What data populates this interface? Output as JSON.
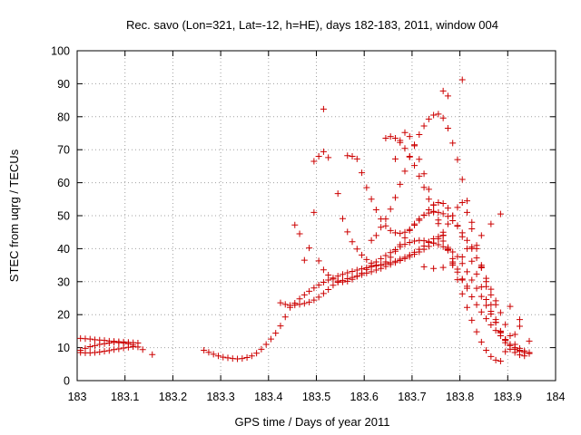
{
  "chart_data": {
    "type": "scatter",
    "title": "Rec. savo (Lon=321, Lat=-12, h=HE), days 182-183, 2011, window 004",
    "xlabel": "GPS time / Days of year 2011",
    "ylabel": "STEC from uqrg / TECUs",
    "xlim": [
      183,
      184
    ],
    "ylim": [
      0,
      100
    ],
    "xticks": [
      183,
      183.1,
      183.2,
      183.3,
      183.4,
      183.5,
      183.6,
      183.7,
      183.8,
      183.9,
      184
    ],
    "xtick_labels": [
      "183",
      "183.1",
      "183.2",
      "183.3",
      "183.4",
      "183.5",
      "183.6",
      "183.7",
      "183.8",
      "183.9",
      "184"
    ],
    "yticks": [
      0,
      10,
      20,
      30,
      40,
      50,
      60,
      70,
      80,
      90,
      100
    ],
    "ytick_labels": [
      "0",
      "10",
      "20",
      "30",
      "40",
      "50",
      "60",
      "70",
      "80",
      "90",
      "100"
    ],
    "grid": true,
    "marker": "plus",
    "color": "#cc0000",
    "series": [
      {
        "x": [
          183.007,
          183.017,
          183.027,
          183.037,
          183.047,
          183.057,
          183.067,
          183.077,
          183.087,
          183.097,
          183.107,
          183.117,
          183.127,
          183.137,
          183.157
        ],
        "y": [
          9.2,
          9.8,
          10.3,
          10.6,
          11.0,
          11.2,
          11.4,
          11.6,
          11.5,
          11.4,
          11.2,
          10.8,
          10.2,
          9.4,
          7.9
        ]
      },
      {
        "x": [
          183.007,
          183.017,
          183.027,
          183.037,
          183.047,
          183.057,
          183.067,
          183.077,
          183.087,
          183.097,
          183.107,
          183.117
        ],
        "y": [
          8.5,
          8.4,
          8.4,
          8.5,
          8.7,
          8.9,
          9.1,
          9.4,
          9.6,
          9.9,
          10.1,
          10.3
        ]
      },
      {
        "x": [
          183.007,
          183.017,
          183.027,
          183.037,
          183.047,
          183.057,
          183.067,
          183.077,
          183.087,
          183.097,
          183.107,
          183.117,
          183.127
        ],
        "y": [
          12.8,
          12.7,
          12.6,
          12.4,
          12.3,
          12.2,
          12.0,
          11.9,
          11.8,
          11.7,
          11.6,
          11.5,
          11.4
        ]
      },
      {
        "x": [
          183.265,
          183.275,
          183.285,
          183.295,
          183.305,
          183.315,
          183.325,
          183.335,
          183.345,
          183.355,
          183.365,
          183.375,
          183.385,
          183.395,
          183.405,
          183.415,
          183.425,
          183.435,
          183.445,
          183.455,
          183.465,
          183.475,
          183.485,
          183.495,
          183.505,
          183.515,
          183.525,
          183.535,
          183.545,
          183.555,
          183.565,
          183.575,
          183.585,
          183.595,
          183.605,
          183.615,
          183.625,
          183.635,
          183.645,
          183.655,
          183.665,
          183.675,
          183.685,
          183.695,
          183.705,
          183.715,
          183.725,
          183.735,
          183.745,
          183.755,
          183.765,
          183.775,
          183.785,
          183.795,
          183.805,
          183.815
        ],
        "y": [
          9.2,
          8.6,
          8.0,
          7.5,
          7.1,
          6.9,
          6.7,
          6.6,
          6.7,
          7.0,
          7.5,
          8.3,
          9.5,
          11.0,
          12.6,
          14.4,
          16.6,
          19.3,
          22.2,
          23.5,
          24.8,
          26.0,
          27.1,
          28.1,
          29.0,
          29.8,
          30.5,
          31.1,
          31.7,
          32.2,
          32.7,
          33.1,
          33.5,
          33.9,
          34.2,
          34.5,
          34.8,
          35.1,
          35.4,
          35.7,
          36.2,
          36.8,
          37.4,
          38.1,
          38.9,
          39.8,
          40.8,
          41.9,
          43.0,
          43.6,
          42.3,
          39.7,
          36.0,
          32.9,
          30.5,
          28.6
        ]
      },
      {
        "x": [
          183.425,
          183.435,
          183.445,
          183.455,
          183.465,
          183.475,
          183.485,
          183.495,
          183.505,
          183.515,
          183.525,
          183.535,
          183.545,
          183.555,
          183.565,
          183.575,
          183.585,
          183.595,
          183.605,
          183.615,
          183.625,
          183.635,
          183.645,
          183.655,
          183.665,
          183.675,
          183.685,
          183.695,
          183.705,
          183.715,
          183.725,
          183.735,
          183.745,
          183.755,
          183.765,
          183.775,
          183.785,
          183.795,
          183.805,
          183.815,
          183.825,
          183.835,
          183.845,
          183.855,
          183.865,
          183.875
        ],
        "y": [
          23.6,
          23.1,
          22.8,
          22.9,
          23.1,
          23.4,
          23.8,
          24.4,
          25.3,
          26.4,
          27.6,
          28.9,
          29.8,
          30.4,
          30.9,
          31.3,
          31.7,
          32.1,
          32.6,
          33.0,
          33.5,
          34.0,
          34.6,
          35.2,
          35.8,
          36.4,
          37.0,
          37.6,
          38.3,
          39.0,
          39.8,
          40.7,
          41.7,
          43.0,
          45.0,
          47.5,
          50.0,
          52.5,
          54.0,
          51.0,
          46.0,
          40.0,
          35.0,
          30.0,
          26.0,
          23.0
        ]
      },
      {
        "x": [
          183.455,
          183.465,
          183.475,
          183.485,
          183.495,
          183.505,
          183.515,
          183.525,
          183.535,
          183.545,
          183.555,
          183.565,
          183.575,
          183.585,
          183.595,
          183.605,
          183.615,
          183.625,
          183.635,
          183.645,
          183.655,
          183.665,
          183.675,
          183.685,
          183.695,
          183.705,
          183.715,
          183.725,
          183.735,
          183.745,
          183.755,
          183.765,
          183.775,
          183.785,
          183.795,
          183.805,
          183.815,
          183.825,
          183.835,
          183.845,
          183.855,
          183.865,
          183.875,
          183.885,
          183.895
        ],
        "y": [
          47.2,
          44.5,
          36.5,
          40.2,
          51.0,
          36.3,
          33.6,
          32.0,
          30.8,
          30.2,
          29.9,
          30.1,
          30.7,
          31.6,
          32.6,
          33.7,
          34.9,
          36.0,
          37.0,
          37.9,
          38.8,
          39.7,
          40.6,
          41.3,
          41.9,
          42.3,
          42.5,
          42.4,
          42.1,
          41.7,
          41.2,
          40.6,
          39.9,
          39.0,
          37.6,
          35.5,
          33.0,
          30.5,
          28.0,
          25.5,
          22.8,
          20.2,
          17.6,
          15.0,
          12.5
        ]
      },
      {
        "x": [
          183.495,
          183.505,
          183.515,
          183.525
        ],
        "y": [
          66.5,
          68.0,
          69.4,
          67.6
        ]
      },
      {
        "x": [
          183.515
        ],
        "y": [
          82.3
        ]
      },
      {
        "x": [
          183.545,
          183.555,
          183.565,
          183.575,
          183.585,
          183.595,
          183.605,
          183.615,
          183.625,
          183.635,
          183.645,
          183.655,
          183.665,
          183.675,
          183.685,
          183.695,
          183.705,
          183.715,
          183.725,
          183.735,
          183.745,
          183.755,
          183.765,
          183.775,
          183.785,
          183.795,
          183.805,
          183.815,
          183.825,
          183.835,
          183.845,
          183.855,
          183.865,
          183.875,
          183.885,
          183.895,
          183.905,
          183.915,
          183.925,
          183.935,
          183.945
        ],
        "y": [
          56.7,
          49.1,
          45.1,
          42.1,
          39.9,
          38.1,
          36.7,
          35.6,
          35.0,
          35.1,
          36.0,
          37.4,
          39.2,
          41.2,
          43.3,
          45.5,
          47.5,
          49.0,
          50.1,
          50.8,
          51.1,
          51.0,
          50.6,
          49.8,
          48.5,
          46.8,
          44.8,
          42.5,
          40.0,
          37.2,
          34.2,
          31.0,
          27.7,
          24.2,
          20.6,
          17.0,
          13.6,
          11.0,
          9.8,
          9.0,
          8.5
        ]
      },
      {
        "x": [
          183.565,
          183.575,
          183.585,
          183.595,
          183.605,
          183.615,
          183.625,
          183.635,
          183.645,
          183.655,
          183.665,
          183.675,
          183.685,
          183.695,
          183.705,
          183.715,
          183.725,
          183.735,
          183.745,
          183.755,
          183.765,
          183.775,
          183.785,
          183.795,
          183.805,
          183.815,
          183.825,
          183.835,
          183.845,
          183.855,
          183.865,
          183.875,
          183.885,
          183.895,
          183.905,
          183.915,
          183.925,
          183.935,
          183.945
        ],
        "y": [
          68.2,
          68.0,
          67.2,
          63.0,
          58.5,
          55.0,
          51.8,
          49.0,
          46.9,
          45.5,
          44.8,
          44.6,
          45.0,
          45.8,
          47.1,
          48.6,
          50.2,
          51.8,
          53.2,
          54.0,
          53.7,
          52.3,
          50.0,
          47.0,
          43.6,
          40.0,
          36.2,
          32.3,
          28.4,
          24.6,
          21.0,
          17.7,
          14.8,
          12.4,
          10.6,
          9.5,
          8.9,
          8.5,
          8.2
        ]
      },
      {
        "x": [
          183.615,
          183.625,
          183.635,
          183.645,
          183.655,
          183.665,
          183.675,
          183.685,
          183.695,
          183.705,
          183.715,
          183.725,
          183.735,
          183.745,
          183.755,
          183.765,
          183.775,
          183.785,
          183.795,
          183.805,
          183.815,
          183.825,
          183.835,
          183.845,
          183.855,
          183.865,
          183.875,
          183.885,
          183.895,
          183.905,
          183.915,
          183.925,
          183.935
        ],
        "y": [
          42.5,
          44.0,
          46.5,
          49.0,
          52.0,
          55.5,
          59.5,
          63.5,
          67.8,
          71.5,
          74.6,
          77.2,
          79.3,
          80.5,
          80.8,
          79.6,
          76.5,
          72.0,
          67.0,
          61.0,
          54.5,
          48.0,
          41.0,
          34.5,
          28.5,
          23.0,
          18.5,
          14.5,
          11.5,
          9.5,
          8.5,
          7.8,
          7.5
        ]
      },
      {
        "x": [
          183.645,
          183.655,
          183.665,
          183.675,
          183.685,
          183.695,
          183.705,
          183.715,
          183.725,
          183.735,
          183.745,
          183.755,
          183.765,
          183.775,
          183.785,
          183.795,
          183.805,
          183.815,
          183.825,
          183.835,
          183.845,
          183.855,
          183.865,
          183.875,
          183.885,
          183.895,
          183.905,
          183.915,
          183.925,
          183.935
        ],
        "y": [
          73.5,
          74.0,
          73.5,
          72.2,
          70.4,
          68.0,
          65.2,
          62.0,
          58.6,
          55.0,
          51.3,
          47.6,
          44.0,
          40.4,
          37.0,
          33.8,
          30.8,
          28.0,
          25.4,
          23.0,
          20.8,
          18.8,
          16.9,
          15.2,
          13.6,
          12.2,
          11.0,
          10.0,
          9.2,
          8.5
        ]
      },
      {
        "x": [
          183.665,
          183.675,
          183.685,
          183.695,
          183.705,
          183.715,
          183.725,
          183.735,
          183.745,
          183.755,
          183.765,
          183.775,
          183.785,
          183.795,
          183.805,
          183.815,
          183.825,
          183.835,
          183.845,
          183.855,
          183.865,
          183.875,
          183.885,
          183.895,
          183.905,
          183.915,
          183.925
        ],
        "y": [
          67.2,
          72.8,
          75.2,
          74.0,
          71.2,
          67.1,
          62.7,
          58.0,
          53.3,
          48.7,
          44.1,
          39.5,
          35.0,
          30.6,
          26.3,
          22.2,
          18.3,
          14.8,
          11.7,
          9.2,
          7.3,
          6.2,
          5.9,
          8.8,
          11.0,
          14.0,
          16.5
        ]
      },
      {
        "x": [
          183.765,
          183.775
        ],
        "y": [
          87.8,
          86.3
        ]
      },
      {
        "x": [
          183.805
        ],
        "y": [
          91.2
        ]
      },
      {
        "x": [
          183.725,
          183.745,
          183.765,
          183.785,
          183.805,
          183.825,
          183.845,
          183.865,
          183.885,
          183.905,
          183.925,
          183.945
        ],
        "y": [
          34.5,
          34.0,
          34.3,
          35.5,
          37.5,
          40.5,
          44.0,
          47.5,
          50.5,
          22.5,
          18.5,
          12.0
        ]
      }
    ]
  }
}
